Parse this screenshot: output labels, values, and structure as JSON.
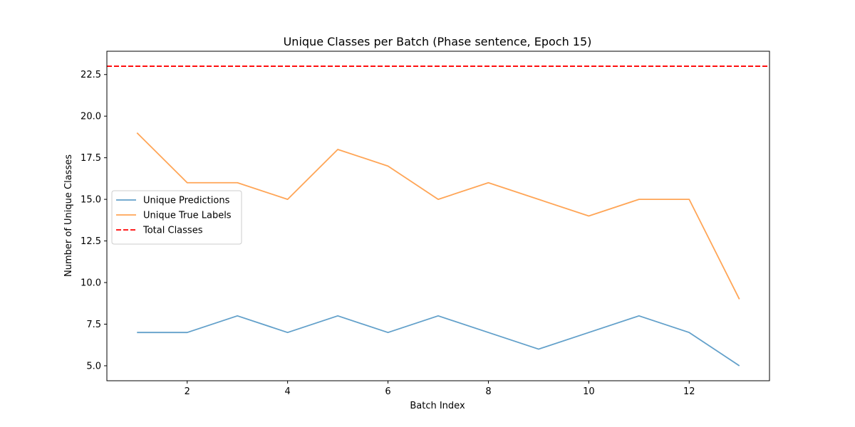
{
  "chart_data": {
    "type": "line",
    "title": "Unique Classes per Batch (Phase sentence, Epoch 15)",
    "xlabel": "Batch Index",
    "ylabel": "Number of Unique Classes",
    "x": [
      1,
      2,
      3,
      4,
      5,
      6,
      7,
      8,
      9,
      10,
      11,
      12,
      13
    ],
    "xlim": [
      0.4,
      13.6
    ],
    "ylim": [
      4.1,
      23.9
    ],
    "xticks": [
      2,
      4,
      6,
      8,
      10,
      12
    ],
    "xtick_labels": [
      "2",
      "4",
      "6",
      "8",
      "10",
      "12"
    ],
    "yticks": [
      5.0,
      7.5,
      10.0,
      12.5,
      15.0,
      17.5,
      20.0,
      22.5
    ],
    "ytick_labels": [
      "5.0",
      "7.5",
      "10.0",
      "12.5",
      "15.0",
      "17.5",
      "20.0",
      "22.5"
    ],
    "grid": false,
    "legend_position": "center-left",
    "series": [
      {
        "name": "Unique Predictions",
        "values": [
          7,
          7,
          8,
          7,
          8,
          7,
          8,
          7,
          6,
          7,
          8,
          7,
          5
        ],
        "color": "#1f77b4",
        "style": "solid",
        "opacity": 0.7
      },
      {
        "name": "Unique True Labels",
        "values": [
          19,
          16,
          16,
          15,
          18,
          17,
          15,
          16,
          15,
          14,
          15,
          15,
          9
        ],
        "color": "#ff7f0e",
        "style": "solid",
        "opacity": 0.7
      }
    ],
    "reference_lines": [
      {
        "name": "Total Classes",
        "y": 23,
        "color": "#ff0000",
        "style": "dashed"
      }
    ]
  }
}
